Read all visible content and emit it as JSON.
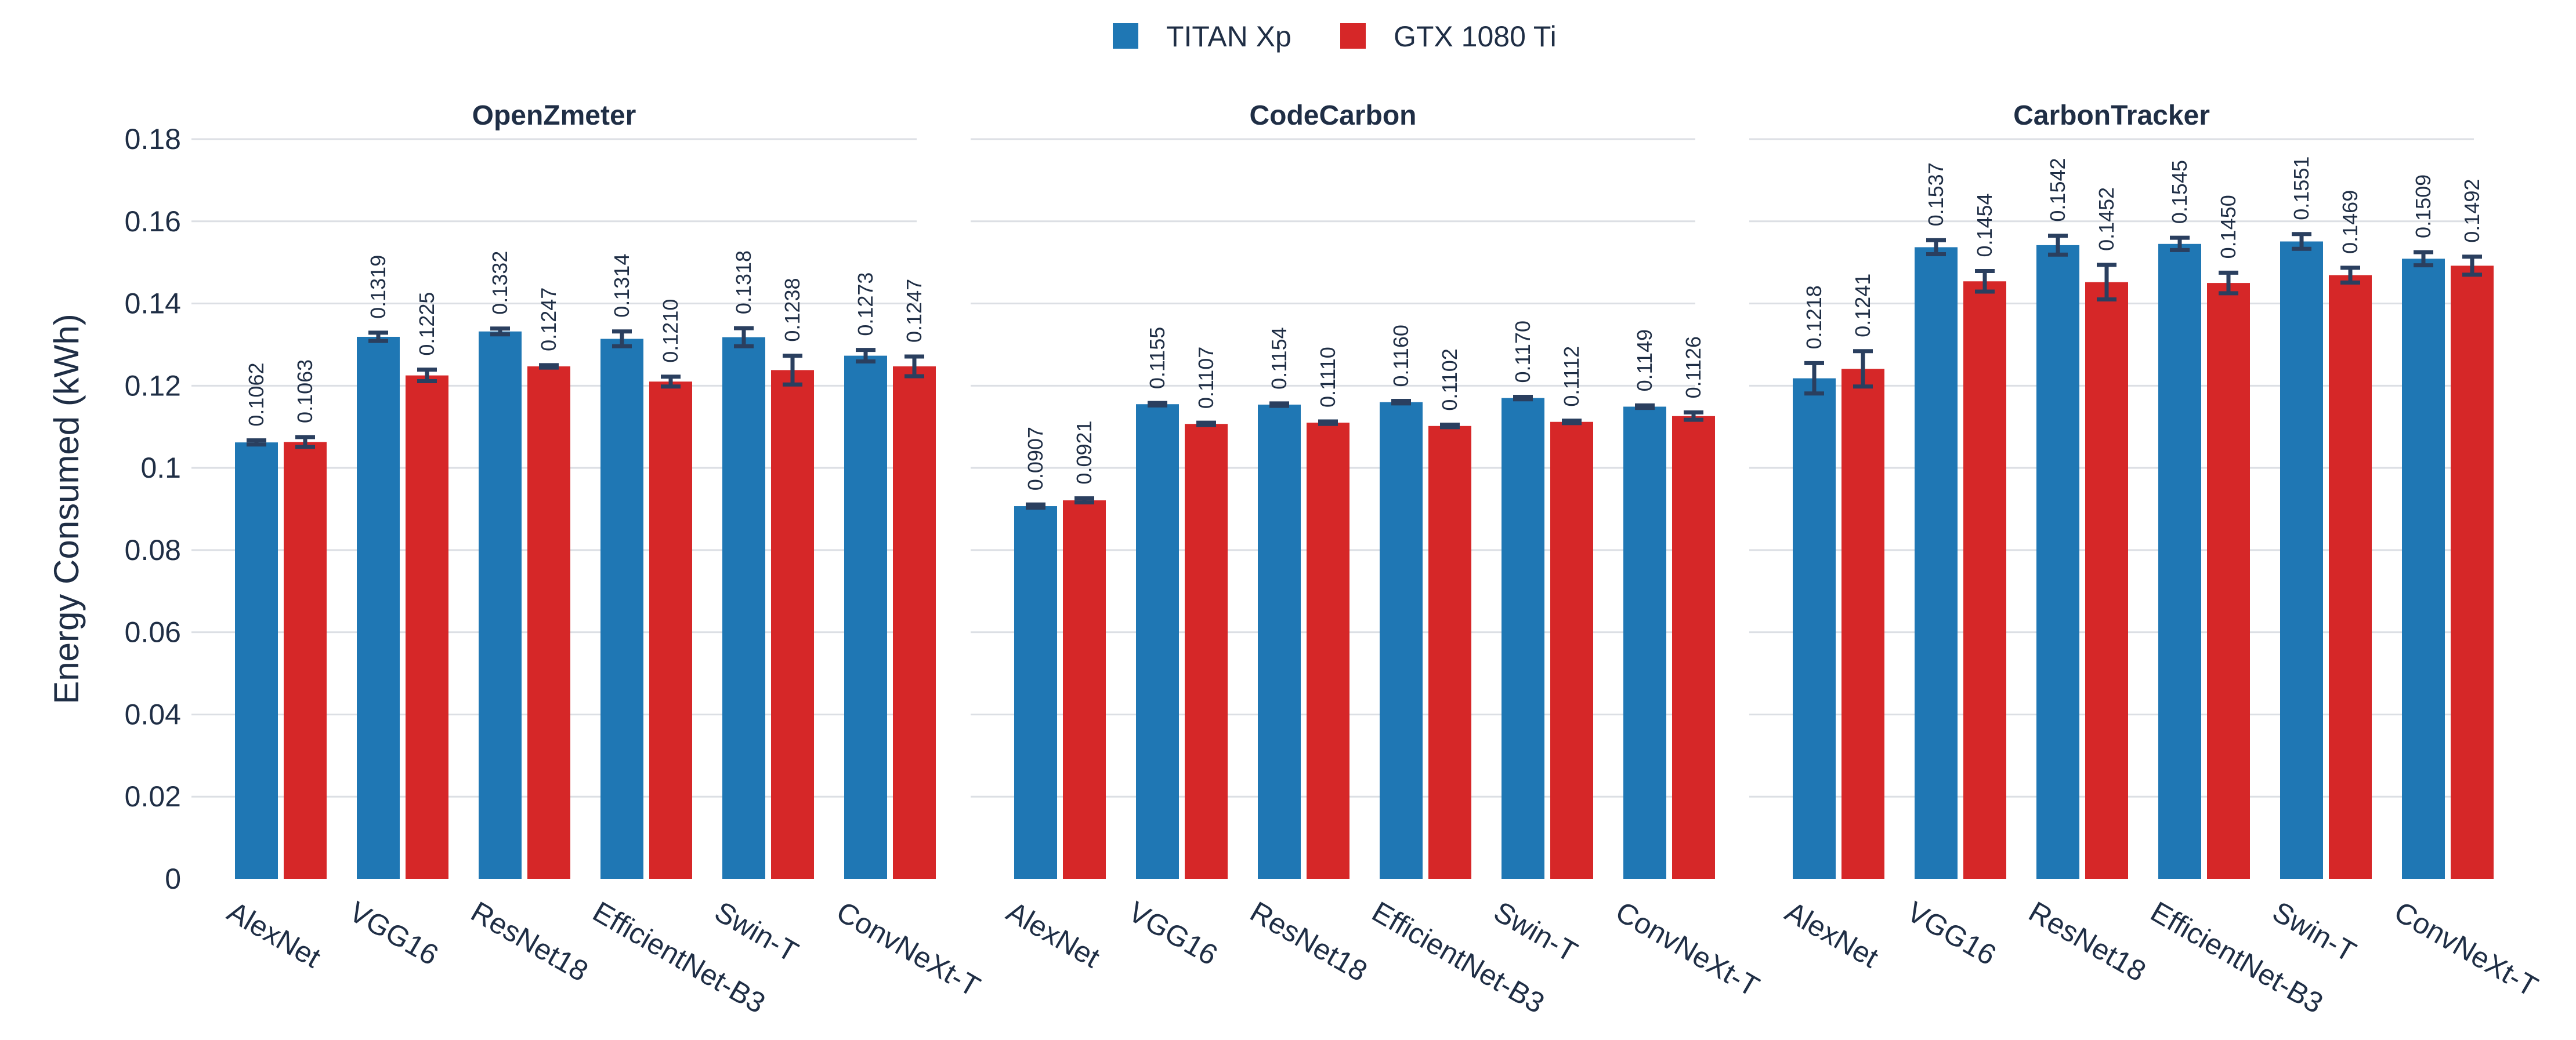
{
  "chart_data": {
    "type": "bar",
    "ylabel": "Energy Consumed (kWh)",
    "ylim": [
      0,
      0.18
    ],
    "yticks": [
      0,
      0.02,
      0.04,
      0.06,
      0.08,
      0.1,
      0.12,
      0.14,
      0.16,
      0.18
    ],
    "ytick_labels": [
      "0",
      "0.02",
      "0.04",
      "0.06",
      "0.08",
      "0.1",
      "0.12",
      "0.14",
      "0.16",
      "0.18"
    ],
    "grid": true,
    "legend_position": "top-center",
    "categories": [
      "AlexNet",
      "VGG16",
      "ResNet18",
      "EfficientNet-B3",
      "Swin-T",
      "ConvNeXt-T"
    ],
    "series_meta": [
      {
        "name": "TITAN Xp",
        "color": "#1f77b4"
      },
      {
        "name": "GTX 1080 Ti",
        "color": "#d62728"
      }
    ],
    "panels": [
      {
        "title": "OpenZmeter",
        "series": [
          {
            "name": "TITAN Xp",
            "values": [
              0.1062,
              0.1319,
              0.1332,
              0.1314,
              0.1318,
              0.1273
            ],
            "labels": [
              "0.1062",
              "0.1319",
              "0.1332",
              "0.1314",
              "0.1318",
              "0.1273"
            ],
            "errors": [
              0.0005,
              0.001,
              0.0007,
              0.0018,
              0.0022,
              0.0014
            ]
          },
          {
            "name": "GTX 1080 Ti",
            "values": [
              0.1063,
              0.1225,
              0.1247,
              0.121,
              0.1238,
              0.1247
            ],
            "labels": [
              "0.1063",
              "0.1225",
              "0.1247",
              "0.1210",
              "0.1238",
              "0.1247"
            ],
            "errors": [
              0.0012,
              0.0014,
              0.0003,
              0.0012,
              0.0035,
              0.0024
            ]
          }
        ]
      },
      {
        "title": "CodeCarbon",
        "series": [
          {
            "name": "TITAN Xp",
            "values": [
              0.0907,
              0.1155,
              0.1154,
              0.116,
              0.117,
              0.1149
            ],
            "labels": [
              "0.0907",
              "0.1155",
              "0.1154",
              "0.1160",
              "0.1170",
              "0.1149"
            ],
            "errors": [
              0.0004,
              0.0003,
              0.0003,
              0.0003,
              0.0003,
              0.0003
            ]
          },
          {
            "name": "GTX 1080 Ti",
            "values": [
              0.0921,
              0.1107,
              0.111,
              0.1102,
              0.1112,
              0.1126
            ],
            "labels": [
              "0.0921",
              "0.1107",
              "0.1110",
              "0.1102",
              "0.1112",
              "0.1126"
            ],
            "errors": [
              0.0005,
              0.0003,
              0.0003,
              0.0003,
              0.0003,
              0.0009
            ]
          }
        ]
      },
      {
        "title": "CarbonTracker",
        "series": [
          {
            "name": "TITAN Xp",
            "values": [
              0.1218,
              0.1537,
              0.1542,
              0.1545,
              0.1551,
              0.1509
            ],
            "labels": [
              "0.1218",
              "0.1537",
              "0.1542",
              "0.1545",
              "0.1551",
              "0.1509"
            ],
            "errors": [
              0.0037,
              0.0017,
              0.0023,
              0.0015,
              0.0018,
              0.0016
            ]
          },
          {
            "name": "GTX 1080 Ti",
            "values": [
              0.1241,
              0.1454,
              0.1452,
              0.145,
              0.1469,
              0.1492
            ],
            "labels": [
              "0.1241",
              "0.1454",
              "0.1452",
              "0.1450",
              "0.1469",
              "0.1492"
            ],
            "errors": [
              0.0043,
              0.0025,
              0.0042,
              0.0025,
              0.0018,
              0.0022
            ]
          }
        ]
      }
    ]
  }
}
